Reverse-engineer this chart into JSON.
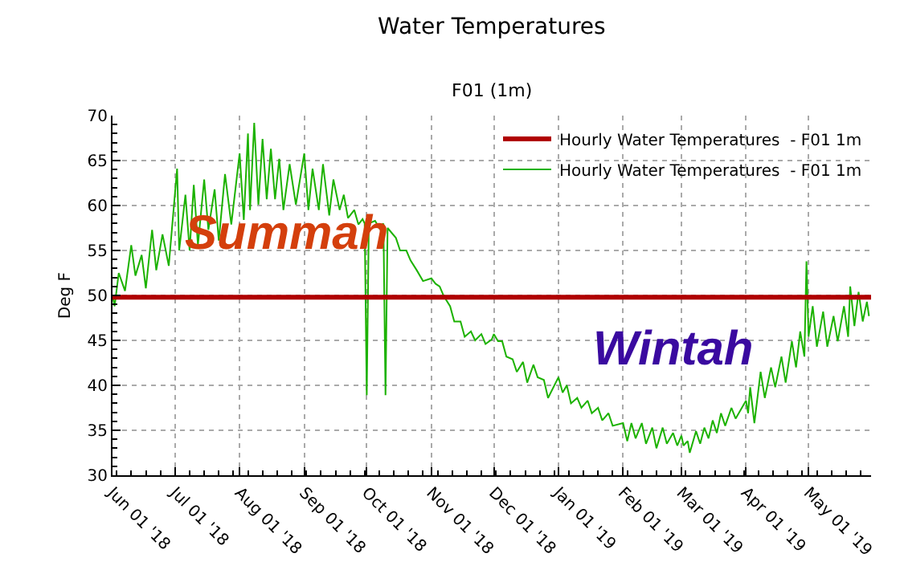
{
  "chart_data": {
    "type": "line",
    "title": "Water Temperatures",
    "subtitle": "F01 (1m)",
    "ylabel": "Deg F",
    "xlim": [
      "2018-06-01",
      "2019-05-31"
    ],
    "ylim": [
      30,
      70
    ],
    "yticks": [
      30,
      35,
      40,
      45,
      50,
      55,
      60,
      65,
      70
    ],
    "xticks": [
      {
        "value": "2018-06-01",
        "label": "Jun 01 '18"
      },
      {
        "value": "2018-07-01",
        "label": "Jul 01 '18"
      },
      {
        "value": "2018-08-01",
        "label": "Aug 01 '18"
      },
      {
        "value": "2018-09-01",
        "label": "Sep 01 '18"
      },
      {
        "value": "2018-10-01",
        "label": "Oct 01 '18"
      },
      {
        "value": "2018-11-01",
        "label": "Nov 01 '18"
      },
      {
        "value": "2018-12-01",
        "label": "Dec 01 '18"
      },
      {
        "value": "2019-01-01",
        "label": "Jan 01 '19"
      },
      {
        "value": "2019-02-01",
        "label": "Feb 01 '19"
      },
      {
        "value": "2019-03-01",
        "label": "Mar 01 '19"
      },
      {
        "value": "2019-04-01",
        "label": "Apr 01 '19"
      },
      {
        "value": "2019-05-01",
        "label": "May 01 '19"
      }
    ],
    "grid": true,
    "legend": "top right",
    "line_style": "solid",
    "annotations": [
      "Summah",
      "Wintah"
    ],
    "series": [
      {
        "name": "Hourly Water Temperatures  - F01 1m",
        "color": "#b00000",
        "x": [
          "2018-06-01",
          "2019-05-31"
        ],
        "values": [
          49.8,
          49.8
        ]
      },
      {
        "name": "Hourly Water Temperatures  - F01 1m",
        "color": "#1cb200",
        "x": [
          "2018-06-01",
          "2018-06-02",
          "2018-06-04",
          "2018-06-07",
          "2018-06-10",
          "2018-06-12",
          "2018-06-15",
          "2018-06-17",
          "2018-06-20",
          "2018-06-22",
          "2018-06-25",
          "2018-06-28",
          "2018-07-02",
          "2018-07-03",
          "2018-07-06",
          "2018-07-08",
          "2018-07-10",
          "2018-07-12",
          "2018-07-15",
          "2018-07-17",
          "2018-07-20",
          "2018-07-22",
          "2018-07-25",
          "2018-07-28",
          "2018-08-01",
          "2018-08-03",
          "2018-08-05",
          "2018-08-06",
          "2018-08-08",
          "2018-08-10",
          "2018-08-12",
          "2018-08-14",
          "2018-08-16",
          "2018-08-18",
          "2018-08-20",
          "2018-08-22",
          "2018-08-25",
          "2018-08-28",
          "2018-09-01",
          "2018-09-03",
          "2018-09-05",
          "2018-09-08",
          "2018-09-10",
          "2018-09-13",
          "2018-09-15",
          "2018-09-18",
          "2018-09-20",
          "2018-09-22",
          "2018-09-25",
          "2018-09-27",
          "2018-09-29",
          "2018-09-30",
          "2018-10-01",
          "2018-10-02",
          "2018-10-05",
          "2018-10-07",
          "2018-10-09",
          "2018-10-10",
          "2018-10-11",
          "2018-10-15",
          "2018-10-17",
          "2018-10-20",
          "2018-10-22",
          "2018-10-25",
          "2018-10-28",
          "2018-11-01",
          "2018-11-03",
          "2018-11-05",
          "2018-11-07",
          "2018-11-10",
          "2018-11-12",
          "2018-11-15",
          "2018-11-17",
          "2018-11-20",
          "2018-11-22",
          "2018-11-25",
          "2018-11-27",
          "2018-11-30",
          "2018-12-01",
          "2018-12-03",
          "2018-12-05",
          "2018-12-07",
          "2018-12-10",
          "2018-12-12",
          "2018-12-15",
          "2018-12-17",
          "2018-12-20",
          "2018-12-22",
          "2018-12-25",
          "2018-12-27",
          "2019-01-01",
          "2019-01-03",
          "2019-01-05",
          "2019-01-07",
          "2019-01-10",
          "2019-01-12",
          "2019-01-15",
          "2019-01-17",
          "2019-01-20",
          "2019-01-22",
          "2019-01-25",
          "2019-01-27",
          "2019-02-01",
          "2019-02-03",
          "2019-02-05",
          "2019-02-07",
          "2019-02-10",
          "2019-02-12",
          "2019-02-15",
          "2019-02-17",
          "2019-02-20",
          "2019-02-22",
          "2019-02-25",
          "2019-02-27",
          "2019-03-01",
          "2019-03-02",
          "2019-03-04",
          "2019-03-05",
          "2019-03-08",
          "2019-03-10",
          "2019-03-12",
          "2019-03-14",
          "2019-03-16",
          "2019-03-18",
          "2019-03-20",
          "2019-03-22",
          "2019-03-25",
          "2019-03-27",
          "2019-04-01",
          "2019-04-02",
          "2019-04-03",
          "2019-04-05",
          "2019-04-08",
          "2019-04-10",
          "2019-04-13",
          "2019-04-15",
          "2019-04-18",
          "2019-04-20",
          "2019-04-23",
          "2019-04-25",
          "2019-04-27",
          "2019-04-29",
          "2019-04-30",
          "2019-05-01",
          "2019-05-03",
          "2019-05-05",
          "2019-05-08",
          "2019-05-10",
          "2019-05-13",
          "2019-05-15",
          "2019-05-18",
          "2019-05-20",
          "2019-05-21",
          "2019-05-23",
          "2019-05-25",
          "2019-05-27",
          "2019-05-29",
          "2019-05-30"
        ],
        "values": [
          50.0,
          48.8,
          52.5,
          50.5,
          55.6,
          52.2,
          54.5,
          50.8,
          57.3,
          52.8,
          56.8,
          53.3,
          64.1,
          55.0,
          61.2,
          55.0,
          62.3,
          55.6,
          62.9,
          57.3,
          61.8,
          56.1,
          63.5,
          57.9,
          65.8,
          58.4,
          68.0,
          59.5,
          69.2,
          60.1,
          67.4,
          60.7,
          66.3,
          60.7,
          65.2,
          59.5,
          64.6,
          60.1,
          65.8,
          59.5,
          64.1,
          59.5,
          64.6,
          58.9,
          62.9,
          59.5,
          61.2,
          58.6,
          59.5,
          57.9,
          58.5,
          58.0,
          38.9,
          58.0,
          58.3,
          57.5,
          58.0,
          38.9,
          57.5,
          56.4,
          55.0,
          55.0,
          53.9,
          52.8,
          51.6,
          51.9,
          51.3,
          51.0,
          49.9,
          48.8,
          47.1,
          47.1,
          45.4,
          46.0,
          45.0,
          45.7,
          44.6,
          45.1,
          45.7,
          44.9,
          44.9,
          43.2,
          42.9,
          41.5,
          42.6,
          40.3,
          42.3,
          40.9,
          40.6,
          38.6,
          40.9,
          39.2,
          40.0,
          38.0,
          38.6,
          37.5,
          38.3,
          36.9,
          37.5,
          36.1,
          36.9,
          35.5,
          35.8,
          33.8,
          35.8,
          34.1,
          35.8,
          33.5,
          35.3,
          33.0,
          35.3,
          33.5,
          34.7,
          33.3,
          34.4,
          33.3,
          33.8,
          32.5,
          34.9,
          33.5,
          35.3,
          34.1,
          36.1,
          34.7,
          36.9,
          35.5,
          37.5,
          36.3,
          38.3,
          36.9,
          39.8,
          35.8,
          41.5,
          38.6,
          42.0,
          39.8,
          43.2,
          40.3,
          44.9,
          42.0,
          46.0,
          43.2,
          53.8,
          45.4,
          48.8,
          44.3,
          48.2,
          44.3,
          47.7,
          44.9,
          48.8,
          45.4,
          51.0,
          46.6,
          50.4,
          47.1,
          49.3,
          47.7
        ]
      }
    ]
  }
}
